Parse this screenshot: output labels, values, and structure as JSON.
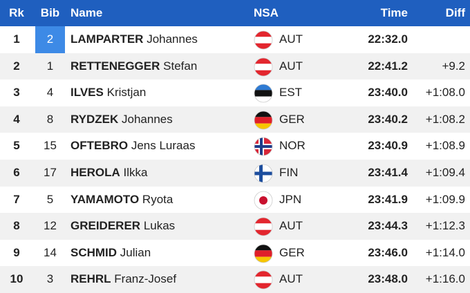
{
  "header": {
    "rank": "Rk",
    "bib": "Bib",
    "name": "Name",
    "nsa": "NSA",
    "time": "Time",
    "diff": "Diff"
  },
  "rows": [
    {
      "rank": "1",
      "bib": "2",
      "last": "LAMPARTER",
      "first": "Johannes",
      "nsa": "AUT",
      "time": "22:32.0"
    },
    {
      "rank": "2",
      "bib": "1",
      "last": "RETTENEGGER",
      "first": "Stefan",
      "nsa": "AUT",
      "time": "22:41.2",
      "diff": "+9.2"
    },
    {
      "rank": "3",
      "bib": "4",
      "last": "ILVES",
      "first": "Kristjan",
      "nsa": "EST",
      "time": "23:40.0",
      "diff": "+1:08.0"
    },
    {
      "rank": "4",
      "bib": "8",
      "last": "RYDZEK",
      "first": "Johannes",
      "nsa": "GER",
      "time": "23:40.2",
      "diff": "+1:08.2"
    },
    {
      "rank": "5",
      "bib": "15",
      "last": "OFTEBRO",
      "first": "Jens Luraas",
      "nsa": "NOR",
      "time": "23:40.9",
      "diff": "+1:08.9"
    },
    {
      "rank": "6",
      "bib": "17",
      "last": "HEROLA",
      "first": "Ilkka",
      "nsa": "FIN",
      "time": "23:41.4",
      "diff": "+1:09.4"
    },
    {
      "rank": "7",
      "bib": "5",
      "last": "YAMAMOTO",
      "first": "Ryota",
      "nsa": "JPN",
      "time": "23:41.9",
      "diff": "+1:09.9"
    },
    {
      "rank": "8",
      "bib": "12",
      "last": "GREIDERER",
      "first": "Lukas",
      "nsa": "AUT",
      "time": "23:44.3",
      "diff": "+1:12.3"
    },
    {
      "rank": "9",
      "bib": "14",
      "last": "SCHMID",
      "first": "Julian",
      "nsa": "GER",
      "time": "23:46.0",
      "diff": "+1:14.0"
    },
    {
      "rank": "10",
      "bib": "3",
      "last": "REHRL",
      "first": "Franz-Josef",
      "nsa": "AUT",
      "time": "23:48.0",
      "diff": "+1:16.0"
    }
  ]
}
